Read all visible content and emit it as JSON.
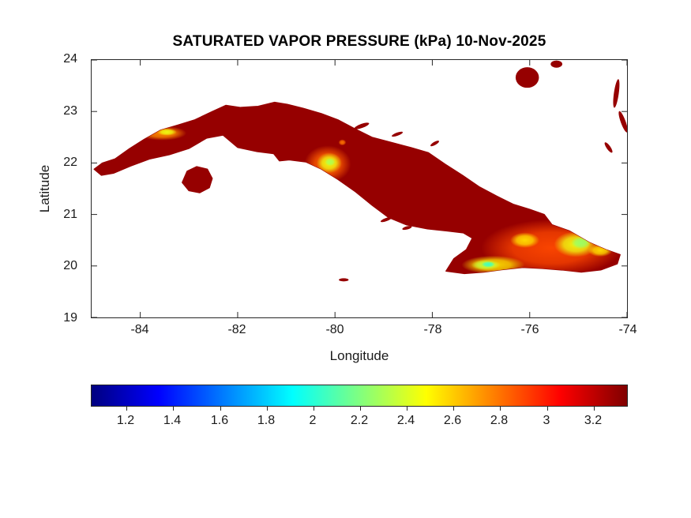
{
  "figure": {
    "background": "#FFFFFF",
    "axis_color": "#262626",
    "text_color": "#1A1A1A"
  },
  "chart_data": {
    "type": "heatmap",
    "title": "SATURATED VAPOR PRESSURE (kPa) 10-Nov-2025",
    "xlabel": "Longitude",
    "ylabel": "Latitude",
    "xlim": [
      -85,
      -74
    ],
    "ylim": [
      19,
      24
    ],
    "xticks": [
      -84,
      -82,
      -80,
      -78,
      -76,
      -74
    ],
    "yticks": [
      19,
      20,
      21,
      22,
      23,
      24
    ],
    "grid": false,
    "colormap": "jet",
    "units": "kPa",
    "colorbar": {
      "orientation": "horizontal",
      "position": "bottom",
      "range": [
        1.05,
        3.35
      ],
      "ticks": [
        1.2,
        1.4,
        1.6,
        1.8,
        2,
        2.2,
        2.4,
        2.6,
        2.8,
        3,
        3.2
      ]
    },
    "base_value": 3.3,
    "regions": {
      "cuba_main": [
        [
          -84.95,
          21.88
        ],
        [
          -84.78,
          22.0
        ],
        [
          -84.52,
          22.08
        ],
        [
          -84.22,
          22.28
        ],
        [
          -83.92,
          22.46
        ],
        [
          -83.58,
          22.64
        ],
        [
          -83.22,
          22.74
        ],
        [
          -82.88,
          22.84
        ],
        [
          -82.52,
          23.0
        ],
        [
          -82.24,
          23.12
        ],
        [
          -81.94,
          23.08
        ],
        [
          -81.58,
          23.1
        ],
        [
          -81.24,
          23.18
        ],
        [
          -80.98,
          23.14
        ],
        [
          -80.64,
          23.06
        ],
        [
          -80.28,
          22.96
        ],
        [
          -79.94,
          22.84
        ],
        [
          -79.58,
          22.66
        ],
        [
          -79.24,
          22.5
        ],
        [
          -78.84,
          22.4
        ],
        [
          -78.44,
          22.3
        ],
        [
          -78.08,
          22.2
        ],
        [
          -77.74,
          21.98
        ],
        [
          -77.38,
          21.76
        ],
        [
          -77.04,
          21.54
        ],
        [
          -76.68,
          21.36
        ],
        [
          -76.34,
          21.2
        ],
        [
          -76.0,
          21.1
        ],
        [
          -75.7,
          21.0
        ],
        [
          -75.54,
          20.8
        ],
        [
          -75.18,
          20.68
        ],
        [
          -74.78,
          20.46
        ],
        [
          -74.44,
          20.32
        ],
        [
          -74.14,
          20.22
        ],
        [
          -74.2,
          20.04
        ],
        [
          -74.54,
          19.92
        ],
        [
          -74.94,
          19.88
        ],
        [
          -75.34,
          19.92
        ],
        [
          -75.74,
          19.95
        ],
        [
          -76.14,
          19.97
        ],
        [
          -76.54,
          19.93
        ],
        [
          -76.94,
          19.88
        ],
        [
          -77.34,
          19.85
        ],
        [
          -77.72,
          19.9
        ],
        [
          -77.56,
          20.14
        ],
        [
          -77.3,
          20.32
        ],
        [
          -77.18,
          20.54
        ],
        [
          -77.36,
          20.64
        ],
        [
          -77.7,
          20.68
        ],
        [
          -78.1,
          20.72
        ],
        [
          -78.54,
          20.8
        ],
        [
          -78.9,
          20.94
        ],
        [
          -79.24,
          21.18
        ],
        [
          -79.58,
          21.44
        ],
        [
          -79.94,
          21.68
        ],
        [
          -80.28,
          21.88
        ],
        [
          -80.6,
          22.02
        ],
        [
          -80.94,
          22.06
        ],
        [
          -81.14,
          22.04
        ],
        [
          -81.26,
          22.18
        ],
        [
          -81.6,
          22.22
        ],
        [
          -82.0,
          22.3
        ],
        [
          -82.3,
          22.54
        ],
        [
          -82.64,
          22.48
        ],
        [
          -83.0,
          22.28
        ],
        [
          -83.4,
          22.16
        ],
        [
          -83.8,
          22.08
        ],
        [
          -84.2,
          21.94
        ],
        [
          -84.55,
          21.8
        ],
        [
          -84.8,
          21.76
        ]
      ],
      "isla_de_la_juventud": [
        [
          -83.14,
          21.62
        ],
        [
          -83.04,
          21.84
        ],
        [
          -82.84,
          21.93
        ],
        [
          -82.62,
          21.88
        ],
        [
          -82.52,
          21.7
        ],
        [
          -82.58,
          21.52
        ],
        [
          -82.78,
          21.42
        ],
        [
          -83.0,
          21.46
        ]
      ]
    },
    "islets": [
      [
        -79.82,
        19.73,
        0.1,
        0.03,
        0
      ],
      [
        -78.95,
        20.9,
        0.12,
        0.03,
        -20
      ],
      [
        -78.52,
        20.74,
        0.1,
        0.03,
        -15
      ],
      [
        -79.45,
        22.72,
        0.16,
        0.04,
        -20
      ],
      [
        -78.72,
        22.56,
        0.12,
        0.03,
        -20
      ],
      [
        -77.95,
        22.38,
        0.1,
        0.03,
        -30
      ],
      [
        -76.05,
        23.66,
        0.24,
        0.2,
        0
      ],
      [
        -75.45,
        23.92,
        0.12,
        0.07,
        0
      ],
      [
        -74.22,
        23.35,
        0.05,
        0.28,
        8
      ],
      [
        -74.08,
        22.8,
        0.05,
        0.22,
        -20
      ],
      [
        -74.38,
        22.3,
        0.04,
        0.12,
        -35
      ]
    ],
    "hotspots": [
      {
        "lon": -83.55,
        "lat": 22.58,
        "rx": 0.5,
        "ry": 0.14,
        "value": 2.75
      },
      {
        "lon": -83.45,
        "lat": 22.6,
        "rx": 0.2,
        "ry": 0.07,
        "value": 2.45
      },
      {
        "lon": -80.15,
        "lat": 21.98,
        "rx": 0.48,
        "ry": 0.36,
        "value": 2.85
      },
      {
        "lon": -80.12,
        "lat": 22.0,
        "rx": 0.26,
        "ry": 0.2,
        "value": 2.45
      },
      {
        "lon": -80.1,
        "lat": 22.02,
        "rx": 0.11,
        "ry": 0.08,
        "value": 2.3
      },
      {
        "lon": -79.85,
        "lat": 22.4,
        "rx": 0.08,
        "ry": 0.06,
        "value": 2.8
      },
      {
        "lon": -75.55,
        "lat": 20.35,
        "rx": 1.45,
        "ry": 0.55,
        "value": 2.9
      },
      {
        "lon": -76.75,
        "lat": 20.02,
        "rx": 0.65,
        "ry": 0.18,
        "value": 2.55
      },
      {
        "lon": -76.9,
        "lat": 20.02,
        "rx": 0.3,
        "ry": 0.1,
        "value": 2.35
      },
      {
        "lon": -76.85,
        "lat": 20.03,
        "rx": 0.14,
        "ry": 0.06,
        "value": 2.05
      },
      {
        "lon": -76.1,
        "lat": 20.5,
        "rx": 0.3,
        "ry": 0.15,
        "value": 2.55
      },
      {
        "lon": -75.05,
        "lat": 20.42,
        "rx": 0.45,
        "ry": 0.25,
        "value": 2.45
      },
      {
        "lon": -74.95,
        "lat": 20.45,
        "rx": 0.2,
        "ry": 0.12,
        "value": 2.25
      },
      {
        "lon": -74.55,
        "lat": 20.3,
        "rx": 0.25,
        "ry": 0.12,
        "value": 2.55
      }
    ]
  }
}
